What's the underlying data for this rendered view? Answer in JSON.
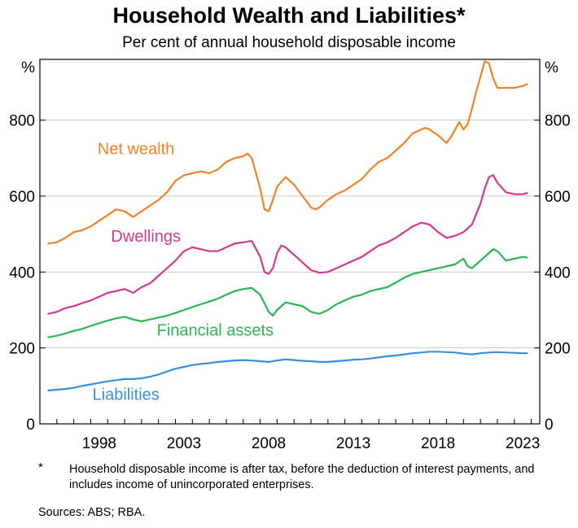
{
  "title": "Household Wealth and Liabilities*",
  "subtitle": "Per cent of annual household disposable income",
  "footnote": {
    "marker": "*",
    "text": "Household disposable income is after tax, before the deduction of interest payments, and includes income of unincorporated enterprises."
  },
  "sources": "Sources: ABS; RBA.",
  "chart_data": {
    "type": "line",
    "title": "Household Wealth and Liabilities*",
    "subtitle": "Per cent of annual household disposable income",
    "y_unit_left": "%",
    "y_unit_right": "%",
    "ylim": [
      0,
      960
    ],
    "xlim": [
      1995.0,
      2024.5
    ],
    "yticks": [
      0,
      200,
      400,
      600,
      800
    ],
    "xtick_labels": [
      "1998",
      "2003",
      "2008",
      "2013",
      "2018",
      "2023"
    ],
    "xtick_values": [
      1998,
      2003,
      2008,
      2013,
      2018,
      2023
    ],
    "grid": true,
    "series": [
      {
        "name": "Net wealth",
        "color": "#f5822b",
        "x": [
          1995.5,
          1996,
          1996.5,
          1997,
          1997.5,
          1998,
          1998.5,
          1999,
          1999.5,
          2000,
          2000.5,
          2001,
          2001.5,
          2002,
          2002.5,
          2003,
          2003.5,
          2004,
          2004.5,
          2005,
          2005.5,
          2006,
          2006.5,
          2007,
          2007.25,
          2007.5,
          2008,
          2008.25,
          2008.5,
          2008.75,
          2009,
          2009.5,
          2009.75,
          2010,
          2010.5,
          2011,
          2011.25,
          2011.5,
          2012,
          2012.5,
          2013,
          2013.5,
          2014,
          2014.5,
          2015,
          2015.5,
          2016,
          2016.5,
          2017,
          2017.5,
          2017.75,
          2018,
          2018.5,
          2019,
          2019.25,
          2019.5,
          2019.75,
          2020,
          2020.25,
          2020.5,
          2020.75,
          2021,
          2021.25,
          2021.5,
          2021.75,
          2022,
          2022.5,
          2023,
          2023.5,
          2023.75
        ],
        "values": [
          475,
          478,
          490,
          505,
          510,
          520,
          535,
          550,
          565,
          560,
          545,
          560,
          575,
          590,
          610,
          640,
          655,
          660,
          665,
          660,
          670,
          690,
          700,
          705,
          712,
          700,
          620,
          565,
          560,
          590,
          625,
          650,
          640,
          630,
          600,
          570,
          565,
          570,
          590,
          605,
          615,
          630,
          645,
          670,
          690,
          700,
          720,
          740,
          765,
          775,
          780,
          775,
          760,
          740,
          755,
          775,
          795,
          775,
          790,
          830,
          875,
          915,
          955,
          950,
          910,
          885,
          885,
          885,
          890,
          895
        ]
      },
      {
        "name": "Dwellings",
        "color": "#d6398c",
        "x": [
          1995.5,
          1996,
          1996.5,
          1997,
          1997.5,
          1998,
          1998.5,
          1999,
          1999.5,
          2000,
          2000.5,
          2001,
          2001.5,
          2002,
          2002.5,
          2003,
          2003.5,
          2004,
          2004.5,
          2005,
          2005.5,
          2006,
          2006.5,
          2007,
          2007.5,
          2008,
          2008.25,
          2008.5,
          2008.75,
          2009,
          2009.25,
          2009.5,
          2010,
          2010.5,
          2011,
          2011.5,
          2012,
          2012.5,
          2013,
          2013.5,
          2014,
          2014.5,
          2015,
          2015.5,
          2016,
          2016.5,
          2017,
          2017.5,
          2018,
          2018.5,
          2019,
          2019.5,
          2020,
          2020.5,
          2021,
          2021.25,
          2021.5,
          2021.75,
          2022,
          2022.5,
          2023,
          2023.5,
          2023.75
        ],
        "values": [
          290,
          295,
          305,
          310,
          318,
          325,
          335,
          345,
          350,
          355,
          345,
          360,
          370,
          390,
          410,
          430,
          455,
          465,
          460,
          455,
          455,
          465,
          475,
          478,
          482,
          440,
          400,
          395,
          410,
          450,
          470,
          465,
          445,
          425,
          405,
          398,
          400,
          410,
          420,
          430,
          440,
          455,
          470,
          478,
          490,
          505,
          520,
          530,
          525,
          505,
          490,
          495,
          505,
          525,
          580,
          620,
          650,
          655,
          635,
          610,
          605,
          605,
          608
        ]
      },
      {
        "name": "Financial assets",
        "color": "#2db457",
        "x": [
          1995.5,
          1996,
          1996.5,
          1997,
          1997.5,
          1998,
          1998.5,
          1999,
          1999.5,
          2000,
          2000.5,
          2001,
          2001.5,
          2002,
          2002.5,
          2003,
          2003.5,
          2004,
          2004.5,
          2005,
          2005.5,
          2006,
          2006.5,
          2007,
          2007.5,
          2008,
          2008.5,
          2008.75,
          2009,
          2009.5,
          2010,
          2010.5,
          2011,
          2011.5,
          2012,
          2012.5,
          2013,
          2013.5,
          2014,
          2014.5,
          2015,
          2015.5,
          2016,
          2016.5,
          2017,
          2017.5,
          2018,
          2018.5,
          2019,
          2019.5,
          2020,
          2020.25,
          2020.5,
          2021,
          2021.5,
          2021.75,
          2022,
          2022.5,
          2023,
          2023.5,
          2023.75
        ],
        "values": [
          228,
          232,
          238,
          245,
          250,
          258,
          265,
          272,
          278,
          282,
          275,
          270,
          275,
          280,
          285,
          292,
          300,
          308,
          315,
          322,
          330,
          340,
          350,
          355,
          358,
          340,
          295,
          285,
          300,
          320,
          315,
          310,
          295,
          290,
          300,
          315,
          325,
          335,
          340,
          350,
          355,
          360,
          372,
          385,
          395,
          400,
          405,
          410,
          415,
          420,
          435,
          415,
          410,
          430,
          450,
          460,
          455,
          430,
          435,
          440,
          438
        ]
      },
      {
        "name": "Liabilities",
        "color": "#3a8fd8",
        "x": [
          1995.5,
          1996,
          1996.5,
          1997,
          1997.5,
          1998,
          1998.5,
          1999,
          1999.5,
          2000,
          2000.5,
          2001,
          2001.5,
          2002,
          2002.5,
          2003,
          2003.5,
          2004,
          2004.5,
          2005,
          2005.5,
          2006,
          2006.5,
          2007,
          2007.5,
          2008,
          2008.5,
          2009,
          2009.5,
          2010,
          2010.5,
          2011,
          2011.5,
          2012,
          2012.5,
          2013,
          2013.5,
          2014,
          2014.5,
          2015,
          2015.5,
          2016,
          2016.5,
          2017,
          2017.5,
          2018,
          2018.5,
          2019,
          2019.5,
          2020,
          2020.5,
          2021,
          2021.5,
          2022,
          2022.5,
          2023,
          2023.5,
          2023.75
        ],
        "values": [
          88,
          90,
          92,
          95,
          100,
          104,
          108,
          112,
          115,
          118,
          118,
          120,
          124,
          130,
          138,
          145,
          150,
          155,
          158,
          160,
          163,
          165,
          167,
          168,
          167,
          165,
          163,
          167,
          170,
          168,
          166,
          165,
          163,
          163,
          165,
          167,
          169,
          170,
          172,
          175,
          178,
          180,
          183,
          186,
          188,
          190,
          190,
          189,
          188,
          185,
          183,
          186,
          188,
          189,
          188,
          187,
          186,
          186
        ]
      }
    ],
    "labels": [
      {
        "text": "Net wealth",
        "series": "Net wealth"
      },
      {
        "text": "Dwellings",
        "series": "Dwellings"
      },
      {
        "text": "Financial assets",
        "series": "Financial assets"
      },
      {
        "text": "Liabilities",
        "series": "Liabilities"
      }
    ]
  }
}
